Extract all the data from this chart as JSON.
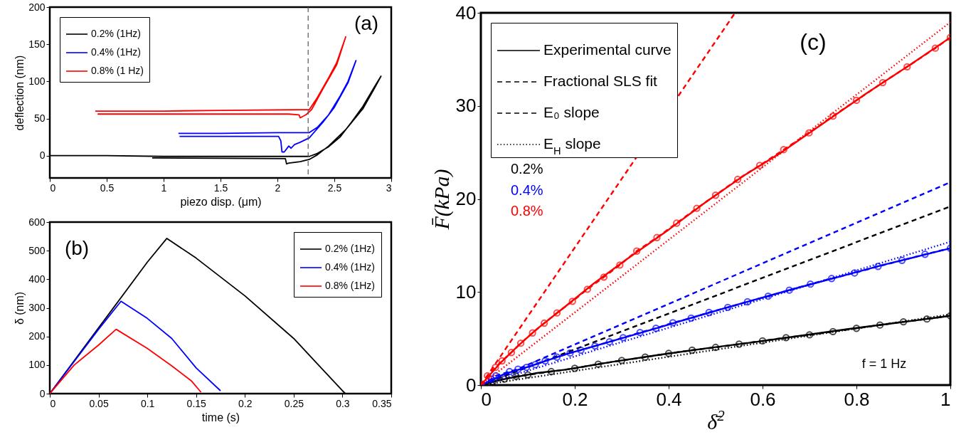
{
  "chart_data": [
    {
      "type": "line",
      "xlabel": "piezo disp. (μm)",
      "ylabel": "deflection (nm)",
      "xlim": [
        0,
        3
      ],
      "xticks": [
        0,
        0.5,
        1,
        1.5,
        2,
        2.5,
        3
      ],
      "ylim": [
        -30,
        200
      ],
      "yticks": [
        0,
        50,
        100,
        150,
        200
      ],
      "legend": "top left",
      "annotations": [
        "(a)"
      ],
      "ref_lines": [
        {
          "axis": "x",
          "value": 2.27,
          "color": "#555555",
          "line_style": "dashed"
        }
      ],
      "series": [
        {
          "name": "0.2% (1Hz)",
          "color": "#000000",
          "x": [
            0,
            0.5,
            1,
            1.5,
            2,
            2.28,
            2.35,
            2.45,
            2.55,
            2.65,
            2.75,
            2.85,
            2.91,
            2.85,
            2.75,
            2.6,
            2.45,
            2.35,
            2.28,
            2.2,
            2.1,
            2.08,
            2.07,
            1.5,
            0.9
          ],
          "values": [
            0,
            0,
            -1,
            -1,
            -1,
            -1,
            3,
            12,
            25,
            45,
            66,
            92,
            107,
            90,
            63,
            35,
            13,
            1,
            -5,
            -8,
            -10,
            -11,
            -4,
            -3.5,
            -3
          ]
        },
        {
          "name": "0.4% (1Hz)",
          "color": "#0000ff",
          "x": [
            1.13,
            1.5,
            2,
            2.28,
            2.35,
            2.45,
            2.55,
            2.62,
            2.69,
            2.62,
            2.5,
            2.4,
            2.28,
            2.2,
            2.15,
            2.12,
            2.1,
            2.06,
            2.04,
            2.03,
            2.01,
            1.5,
            1.14
          ],
          "values": [
            30,
            30,
            31,
            31,
            38,
            55,
            80,
            100,
            128,
            98,
            65,
            45,
            24,
            18,
            15,
            10,
            13,
            5,
            5,
            20,
            26,
            26,
            26
          ]
        },
        {
          "name": "0.8% (1 Hz)",
          "color": "#ff0000",
          "x": [
            0.4,
            1,
            1.5,
            2.28,
            2.35,
            2.45,
            2.52,
            2.6,
            2.52,
            2.4,
            2.3,
            2.25,
            2.2,
            2.19,
            2.1,
            1.5,
            0.42
          ],
          "values": [
            60,
            60,
            61,
            62,
            78,
            105,
            125,
            160,
            122,
            90,
            62,
            55,
            51,
            55,
            56,
            56,
            56
          ]
        }
      ]
    },
    {
      "type": "line",
      "xlabel": "time (s)",
      "ylabel": "δ (nm)",
      "xlim": [
        0,
        0.35
      ],
      "xticks": [
        0,
        0.05,
        0.1,
        0.15,
        0.2,
        0.25,
        0.3,
        0.35
      ],
      "ylim": [
        0,
        600
      ],
      "yticks": [
        0,
        100,
        200,
        300,
        400,
        500,
        600
      ],
      "legend": "top right",
      "annotations": [
        "(b)"
      ],
      "series": [
        {
          "name": "0.2% (1Hz)",
          "color": "#000000",
          "x": [
            0,
            0.05,
            0.1,
            0.12,
            0.15,
            0.2,
            0.25,
            0.3,
            0.303
          ],
          "values": [
            0,
            230,
            460,
            543,
            474,
            342,
            193,
            10,
            0
          ]
        },
        {
          "name": "0.4% (1Hz)",
          "color": "#0000ff",
          "x": [
            0,
            0.05,
            0.073,
            0.1,
            0.125,
            0.15,
            0.175
          ],
          "values": [
            0,
            225,
            323,
            263,
            193,
            90,
            10
          ]
        },
        {
          "name": "0.8% (1Hz)",
          "color": "#ff0000",
          "x": [
            0,
            0.025,
            0.05,
            0.068,
            0.1,
            0.125,
            0.145,
            0.155
          ],
          "values": [
            0,
            100,
            170,
            225,
            158,
            97,
            45,
            5
          ]
        }
      ]
    },
    {
      "type": "line",
      "xlabel": "δ̄$^{2}$",
      "ylabel": "F̄(kPa)",
      "xlim": [
        0,
        1
      ],
      "xticks": [
        0,
        0.2,
        0.4,
        0.6,
        0.8,
        1
      ],
      "ylim": [
        0,
        40
      ],
      "yticks": [
        0,
        10,
        20,
        30,
        40
      ],
      "legend": "top left",
      "annotations": [
        "(c)",
        "0.2%",
        "0.4%",
        "0.8%",
        "f = 1 Hz"
      ],
      "series": [
        {
          "name": "Experimental curve",
          "color": "#000000",
          "line_style": "solid",
          "x": [
            0,
            0.04,
            0.12,
            0.18,
            0.28,
            0.38,
            0.48,
            0.58,
            0.68,
            0.78,
            0.88,
            0.98,
            1
          ],
          "values": [
            0,
            0.55,
            1.3,
            1.65,
            2.5,
            3.25,
            3.95,
            4.6,
            5.3,
            6.0,
            6.65,
            7.3,
            7.45
          ]
        },
        {
          "name": "Fractional SLS fit",
          "color": "#000000",
          "line_style": "dashed",
          "marker": "circle",
          "x": [
            0,
            0.025,
            0.05,
            0.075,
            0.1,
            0.15,
            0.2,
            0.25,
            0.3,
            0.35,
            0.4,
            0.45,
            0.5,
            0.55,
            0.6,
            0.65,
            0.7,
            0.75,
            0.8,
            0.85,
            0.9,
            0.95,
            1
          ],
          "values": [
            0,
            0.35,
            0.65,
            0.95,
            1.1,
            1.45,
            1.8,
            2.25,
            2.65,
            3.0,
            3.4,
            3.75,
            4.05,
            4.4,
            4.75,
            5.1,
            5.4,
            5.75,
            6.1,
            6.45,
            6.8,
            7.1,
            7.45
          ]
        },
        {
          "name": "E₀ slope",
          "color": "#000000",
          "line_style": "dashed",
          "x": [
            0,
            1
          ],
          "values": [
            0,
            19.2
          ]
        },
        {
          "name": "E$_{H}$ slope",
          "color": "#000000",
          "line_style": "dotted",
          "x": [
            0,
            1
          ],
          "values": [
            0,
            7.6
          ]
        },
        {
          "color": "#0000ff",
          "line_style": "solid",
          "x": [
            0,
            0.05,
            0.1,
            0.18,
            0.26,
            0.36,
            0.46,
            0.56,
            0.66,
            0.76,
            0.86,
            0.96,
            1
          ],
          "values": [
            0,
            1.2,
            1.95,
            3.3,
            4.45,
            5.9,
            7.4,
            8.85,
            10.25,
            11.6,
            12.95,
            14.2,
            14.7
          ]
        },
        {
          "color": "#0000ff",
          "line_style": "dashed",
          "marker": "circle",
          "x": [
            0,
            0.022,
            0.032,
            0.061,
            0.079,
            0.097,
            0.116,
            0.137,
            0.162,
            0.19,
            0.213,
            0.243,
            0.274,
            0.303,
            0.339,
            0.373,
            0.409,
            0.448,
            0.486,
            0.526,
            0.568,
            0.612,
            0.657,
            0.702,
            0.747,
            0.796,
            0.846,
            0.897,
            0.946,
            1
          ],
          "values": [
            0,
            0.65,
            1.0,
            1.45,
            1.7,
            1.9,
            2.2,
            2.6,
            3.0,
            3.45,
            3.75,
            4.2,
            4.65,
            5.1,
            5.65,
            6.1,
            6.7,
            7.2,
            7.8,
            8.35,
            8.95,
            9.55,
            10.2,
            10.85,
            11.45,
            12.05,
            12.75,
            13.4,
            14.05,
            14.7
          ]
        },
        {
          "color": "#0000ff",
          "line_style": "dashed",
          "x": [
            0,
            1
          ],
          "values": [
            0,
            21.8
          ]
        },
        {
          "color": "#0000ff",
          "line_style": "dotted",
          "x": [
            0,
            1
          ],
          "values": [
            0,
            15.4
          ]
        },
        {
          "color": "#ff0000",
          "line_style": "solid",
          "x": [
            0,
            0.04,
            0.08,
            0.12,
            0.18,
            0.24,
            0.31,
            0.4,
            0.48,
            0.56,
            0.64,
            0.72,
            0.82,
            0.92,
            1
          ],
          "values": [
            0,
            2.3,
            4.25,
            6.05,
            8.45,
            10.9,
            13.5,
            16.7,
            19.7,
            22.5,
            25.0,
            27.8,
            31.3,
            34.6,
            37.35
          ]
        },
        {
          "color": "#ff0000",
          "line_style": "dashed",
          "marker": "circle",
          "x": [
            0,
            0.014,
            0.031,
            0.045,
            0.065,
            0.085,
            0.11,
            0.135,
            0.162,
            0.195,
            0.227,
            0.262,
            0.296,
            0.332,
            0.375,
            0.417,
            0.46,
            0.5,
            0.547,
            0.594,
            0.645,
            0.699,
            0.75,
            0.8,
            0.856,
            0.908,
            0.968,
            1
          ],
          "values": [
            0,
            1.0,
            1.9,
            2.6,
            3.5,
            4.5,
            5.6,
            6.65,
            7.75,
            9.0,
            10.3,
            11.6,
            12.9,
            14.4,
            15.85,
            17.4,
            19.0,
            20.4,
            22.1,
            23.6,
            25.3,
            27.1,
            28.9,
            30.6,
            32.5,
            34.2,
            36.2,
            37.35
          ]
        },
        {
          "color": "#ff0000",
          "line_style": "dashed",
          "x": [
            0,
            0.5415
          ],
          "values": [
            0,
            40
          ]
        },
        {
          "color": "#ff0000",
          "line_style": "dotted",
          "x": [
            0,
            1
          ],
          "values": [
            0,
            39.0
          ]
        }
      ]
    }
  ]
}
